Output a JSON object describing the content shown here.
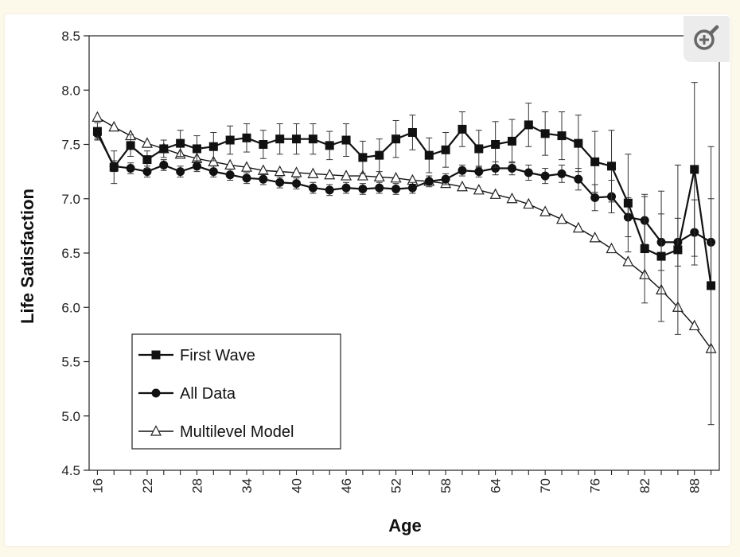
{
  "chart_data": {
    "type": "line",
    "title": "",
    "xlabel": "Age",
    "ylabel": "Life Satisfaction",
    "xlim": [
      15,
      91
    ],
    "ylim": [
      4.5,
      8.5
    ],
    "x_ticks": [
      16,
      22,
      28,
      34,
      40,
      46,
      52,
      58,
      64,
      70,
      76,
      82,
      88
    ],
    "y_ticks": [
      "4.5",
      "5.0",
      "5.5",
      "6.0",
      "6.5",
      "7.0",
      "7.5",
      "8.0",
      "8.5"
    ],
    "legend_position": "bottom-left",
    "series": [
      {
        "name": "First Wave",
        "marker": "square",
        "x": [
          16,
          18,
          20,
          22,
          24,
          26,
          28,
          30,
          32,
          34,
          36,
          38,
          40,
          42,
          44,
          46,
          48,
          50,
          52,
          54,
          56,
          58,
          60,
          62,
          64,
          66,
          68,
          70,
          72,
          74,
          76,
          78,
          80,
          82,
          84,
          86,
          88,
          90
        ],
        "y": [
          7.62,
          7.29,
          7.49,
          7.36,
          7.46,
          7.51,
          7.46,
          7.48,
          7.54,
          7.56,
          7.5,
          7.55,
          7.55,
          7.55,
          7.49,
          7.54,
          7.38,
          7.4,
          7.55,
          7.61,
          7.4,
          7.45,
          7.64,
          7.46,
          7.5,
          7.53,
          7.68,
          7.6,
          7.58,
          7.51,
          7.34,
          7.3,
          6.96,
          6.54,
          6.47,
          6.53,
          7.27,
          6.2
        ],
        "err": [
          0.08,
          0.15,
          0.1,
          0.08,
          0.08,
          0.12,
          0.12,
          0.13,
          0.13,
          0.13,
          0.13,
          0.14,
          0.14,
          0.14,
          0.13,
          0.15,
          0.15,
          0.15,
          0.17,
          0.16,
          0.16,
          0.16,
          0.16,
          0.17,
          0.21,
          0.2,
          0.2,
          0.2,
          0.22,
          0.26,
          0.28,
          0.33,
          0.45,
          0.5,
          0.6,
          0.78,
          0.8,
          1.28
        ]
      },
      {
        "name": "All Data",
        "marker": "circle",
        "x": [
          16,
          18,
          20,
          22,
          24,
          26,
          28,
          30,
          32,
          34,
          36,
          38,
          40,
          42,
          44,
          46,
          48,
          50,
          52,
          54,
          56,
          58,
          60,
          62,
          64,
          66,
          68,
          70,
          72,
          74,
          76,
          78,
          80,
          82,
          84,
          86,
          88,
          90
        ],
        "y": [
          7.6,
          7.3,
          7.28,
          7.25,
          7.31,
          7.25,
          7.3,
          7.25,
          7.22,
          7.19,
          7.18,
          7.15,
          7.14,
          7.1,
          7.08,
          7.1,
          7.09,
          7.1,
          7.09,
          7.1,
          7.16,
          7.18,
          7.26,
          7.25,
          7.28,
          7.28,
          7.24,
          7.21,
          7.23,
          7.18,
          7.01,
          7.02,
          6.83,
          6.8,
          6.6,
          6.6,
          6.69,
          6.6
        ],
        "err": [
          0.05,
          0.05,
          0.05,
          0.05,
          0.05,
          0.05,
          0.05,
          0.05,
          0.05,
          0.05,
          0.05,
          0.05,
          0.05,
          0.05,
          0.05,
          0.05,
          0.05,
          0.05,
          0.05,
          0.05,
          0.05,
          0.05,
          0.05,
          0.05,
          0.06,
          0.06,
          0.07,
          0.07,
          0.08,
          0.1,
          0.12,
          0.15,
          0.18,
          0.22,
          0.26,
          0.22,
          0.3,
          0.4
        ]
      },
      {
        "name": "Multilevel Model",
        "marker": "triangle-open",
        "x": [
          16,
          18,
          20,
          22,
          24,
          26,
          28,
          30,
          32,
          34,
          36,
          38,
          40,
          42,
          44,
          46,
          48,
          50,
          52,
          54,
          56,
          58,
          60,
          62,
          64,
          66,
          68,
          70,
          72,
          74,
          76,
          78,
          80,
          82,
          84,
          86,
          88,
          90
        ],
        "y": [
          7.75,
          7.66,
          7.58,
          7.51,
          7.46,
          7.41,
          7.37,
          7.34,
          7.31,
          7.29,
          7.26,
          7.25,
          7.24,
          7.23,
          7.22,
          7.21,
          7.21,
          7.2,
          7.19,
          7.17,
          7.16,
          7.14,
          7.11,
          7.08,
          7.04,
          7.0,
          6.95,
          6.88,
          6.81,
          6.73,
          6.64,
          6.54,
          6.42,
          6.3,
          6.16,
          6.0,
          5.83,
          5.62
        ]
      }
    ]
  }
}
